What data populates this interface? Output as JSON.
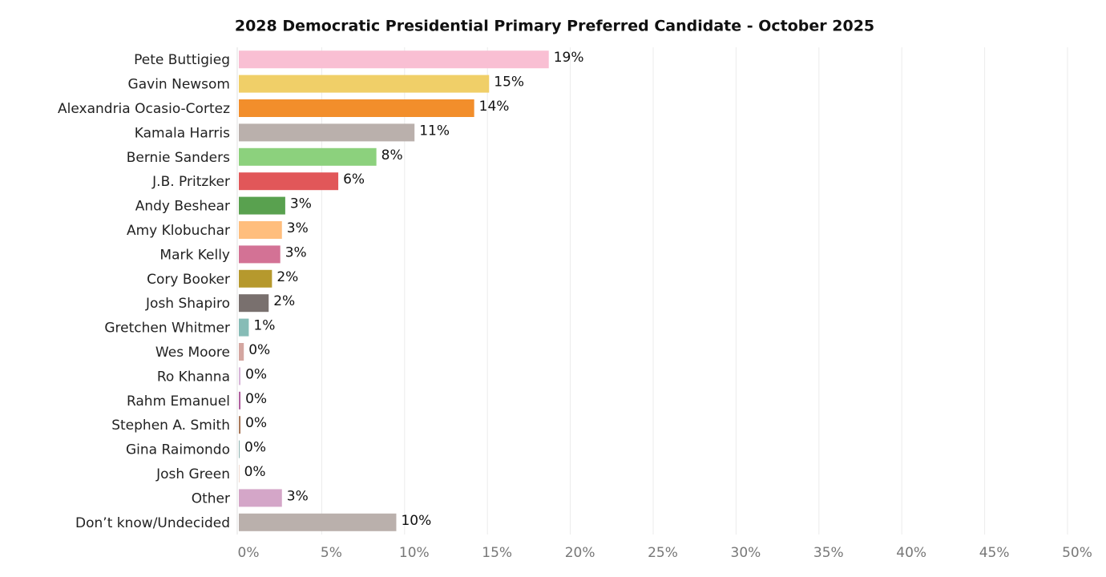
{
  "chart_data": {
    "type": "hbar",
    "title": "2028 Democratic Presidential Primary Preferred Candidate - October 2025",
    "categories": [
      "Pete Buttigieg",
      "Gavin Newsom",
      "Alexandria Ocasio-Cortez",
      "Kamala Harris",
      "Bernie Sanders",
      "J.B. Pritzker",
      "Andy Beshear",
      "Amy Klobuchar",
      "Mark Kelly",
      "Cory Booker",
      "Josh Shapiro",
      "Gretchen Whitmer",
      "Wes Moore",
      "Ro Khanna",
      "Rahm Emanuel",
      "Stephen A. Smith",
      "Gina Raimondo",
      "Josh Green",
      "Other",
      "Don’t know/Undecided"
    ],
    "values": [
      18.7,
      15.1,
      14.2,
      10.6,
      8.3,
      6.0,
      2.8,
      2.6,
      2.5,
      2.0,
      1.8,
      0.6,
      0.3,
      0.1,
      0.1,
      0.1,
      0.05,
      0.03,
      2.6,
      9.5
    ],
    "value_labels": [
      "19%",
      "15%",
      "14%",
      "11%",
      "8%",
      "6%",
      "3%",
      "3%",
      "3%",
      "2%",
      "2%",
      "1%",
      "0%",
      "0%",
      "0%",
      "0%",
      "0%",
      "0%",
      "3%",
      "10%"
    ],
    "colors": [
      "#f9bfd3",
      "#f0cf68",
      "#f28e2b",
      "#bab0ac",
      "#8cd17d",
      "#e15759",
      "#59a14f",
      "#ffbe7d",
      "#d37295",
      "#b6992d",
      "#79706e",
      "#86bcb6",
      "#d4a6a0",
      "#d7b5d8",
      "#b0609f",
      "#a9795b",
      "#8fb6b3",
      "#e7c4b3",
      "#d4a6c8",
      "#bab0ac"
    ],
    "xlim": [
      0,
      50
    ],
    "xticks": [
      {
        "value": 0,
        "label": "0%"
      },
      {
        "value": 5,
        "label": "5%"
      },
      {
        "value": 10,
        "label": "10%"
      },
      {
        "value": 15,
        "label": "15%"
      },
      {
        "value": 20,
        "label": "20%"
      },
      {
        "value": 25,
        "label": "25%"
      },
      {
        "value": 30,
        "label": "30%"
      },
      {
        "value": 35,
        "label": "35%"
      },
      {
        "value": 40,
        "label": "40%"
      },
      {
        "value": 45,
        "label": "45%"
      },
      {
        "value": 50,
        "label": "50%"
      }
    ],
    "grid": true
  }
}
